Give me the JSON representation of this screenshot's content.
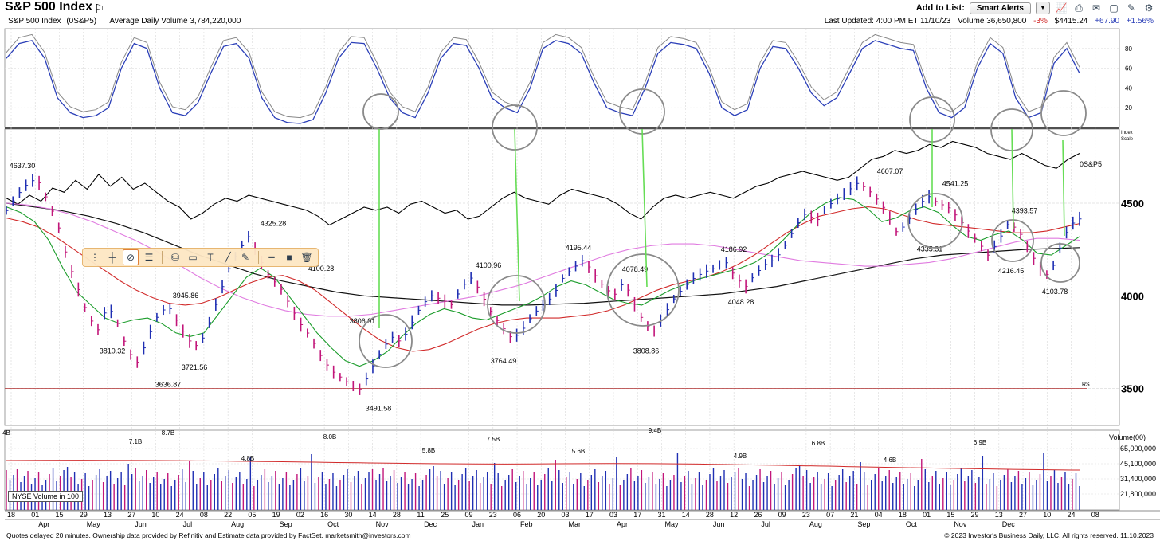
{
  "header": {
    "title": "S&P 500 Index",
    "add_to_list_label": "Add to List:",
    "smart_alerts_label": "Smart Alerts",
    "icons": [
      "flag-icon",
      "chart-icon",
      "print-icon",
      "alert-icon",
      "bookmark-icon",
      "tools-icon",
      "settings-icon"
    ]
  },
  "info_bar": {
    "name": "S&P 500 Index",
    "symbol": "(0S&P5)",
    "avg_volume": "Average Daily Volume 3,784,220,000",
    "last_updated": "Last Updated: 4:00 PM ET 11/10/23",
    "volume": "Volume 36,650,800",
    "volume_pct": "-3%",
    "price": "$4415.24",
    "change": "+67.90",
    "change_pct": "+1.56%"
  },
  "colors": {
    "accent_blue": "#2b3fb8",
    "up_bar": "#1f2fb3",
    "down_bar": "#c2167a",
    "ma_green": "#1a9c2a",
    "ma_red": "#d12a2a",
    "ma_pink": "#e07be0",
    "ma_black": "#111111",
    "highlight_green": "#66dd55",
    "circle_gray": "#8a8a8a",
    "rs_line": "#b03030"
  },
  "chart_data": {
    "type": "line",
    "title": "S&P 500 Index",
    "price_axis": {
      "ticks": [
        3500,
        4000,
        4500
      ],
      "ylim": [
        3300,
        4900
      ],
      "scale_label_1": "Index",
      "scale_label_2": "Scale"
    },
    "stochastic_axis": {
      "ticks": [
        20,
        40,
        60,
        80
      ],
      "ylim": [
        0,
        100
      ]
    },
    "volume_axis": {
      "unit_label": "Volume(00)",
      "ticks": [
        "65,000,000",
        "45,100,000",
        "31,400,000",
        "21,800,000"
      ]
    },
    "rs_label": "0S&P5",
    "rs_mark": "RS",
    "nyse_volume_label": "NYSE Volume in 100",
    "x_week_ticks": [
      "18",
      "01",
      "15",
      "29",
      "13",
      "27",
      "10",
      "24",
      "08",
      "22",
      "05",
      "19",
      "02",
      "16",
      "30",
      "14",
      "28",
      "11",
      "25",
      "09",
      "23",
      "06",
      "20",
      "03",
      "17",
      "03",
      "17",
      "31",
      "14",
      "28",
      "12",
      "26",
      "09",
      "23",
      "07",
      "21",
      "04",
      "18",
      "01",
      "15",
      "29",
      "13",
      "27",
      "10",
      "24",
      "08"
    ],
    "x_months": [
      "Apr",
      "May",
      "Jun",
      "Jul",
      "Aug",
      "Sep",
      "Oct",
      "Nov",
      "Dec",
      "Jan",
      "Feb",
      "Mar",
      "Apr",
      "May",
      "Jun",
      "Jul",
      "Aug",
      "Sep",
      "Oct",
      "Nov",
      "Dec"
    ],
    "price_annotations": [
      {
        "label": "4637.30",
        "value": 4637.3
      },
      {
        "label": "3810.32",
        "value": 3810.32
      },
      {
        "label": "3636.87",
        "value": 3636.87
      },
      {
        "label": "3945.86",
        "value": 3945.86
      },
      {
        "label": "3721.56",
        "value": 3721.56
      },
      {
        "label": "4325.28",
        "value": 4325.28
      },
      {
        "label": "4100.28",
        "value": 4100.28
      },
      {
        "label": "3806.91",
        "value": 3806.91
      },
      {
        "label": "3491.58",
        "value": 3491.58
      },
      {
        "label": "4100.96",
        "value": 4100.96
      },
      {
        "label": "3764.49",
        "value": 3764.49
      },
      {
        "label": "4195.44",
        "value": 4195.44
      },
      {
        "label": "4078.49",
        "value": 4078.49
      },
      {
        "label": "3808.86",
        "value": 3808.86
      },
      {
        "label": "4186.92",
        "value": 4186.92
      },
      {
        "label": "4048.28",
        "value": 4048.28
      },
      {
        "label": "4607.07",
        "value": 4607.07
      },
      {
        "label": "4541.25",
        "value": 4541.25
      },
      {
        "label": "4335.31",
        "value": 4335.31
      },
      {
        "label": "4393.57",
        "value": 4393.57
      },
      {
        "label": "4216.45",
        "value": 4216.45
      },
      {
        "label": "4103.78",
        "value": 4103.78
      }
    ],
    "volume_annotations": [
      "4B",
      "7.1B",
      "8.7B",
      "4.8B",
      "8.0B",
      "5.8B",
      "7.5B",
      "5.6B",
      "9.4B",
      "4.9B",
      "6.8B",
      "4.6B",
      "6.9B"
    ],
    "price_path": [
      4460,
      4540,
      4600,
      4637,
      4520,
      4400,
      4200,
      4050,
      3900,
      3810,
      3950,
      3850,
      3700,
      3637,
      3780,
      3900,
      3946,
      3850,
      3760,
      3722,
      3850,
      4000,
      4150,
      4250,
      4325,
      4200,
      4100,
      4050,
      3950,
      3850,
      3780,
      3680,
      3600,
      3560,
      3520,
      3492,
      3600,
      3700,
      3780,
      3750,
      3850,
      3950,
      4000,
      3980,
      3950,
      4050,
      4101,
      4000,
      3900,
      3830,
      3764,
      3820,
      3900,
      3950,
      4000,
      4100,
      4150,
      4195,
      4120,
      4050,
      4000,
      4078,
      3960,
      3850,
      3809,
      3900,
      3990,
      4050,
      4100,
      4130,
      4150,
      4187,
      4100,
      4048,
      4120,
      4170,
      4200,
      4280,
      4380,
      4450,
      4400,
      4480,
      4520,
      4560,
      4607,
      4580,
      4520,
      4450,
      4335,
      4400,
      4480,
      4541,
      4500,
      4480,
      4420,
      4350,
      4290,
      4216,
      4300,
      4394,
      4350,
      4250,
      4150,
      4104,
      4250,
      4380,
      4415
    ],
    "ma_green_path": [
      4480,
      4450,
      4400,
      4300,
      4150,
      4020,
      3950,
      3880,
      3850,
      3870,
      3880,
      3850,
      3800,
      3780,
      3800,
      3900,
      4000,
      4100,
      4150,
      4100,
      4000,
      3900,
      3800,
      3720,
      3650,
      3620,
      3650,
      3700,
      3780,
      3850,
      3900,
      3930,
      3910,
      3880,
      3870,
      3900,
      3930,
      3960,
      4000,
      4050,
      4080,
      4060,
      4020,
      3980,
      3960,
      3950,
      3990,
      4030,
      4060,
      4090,
      4110,
      4130,
      4150,
      4180,
      4230,
      4300,
      4380,
      4450,
      4500,
      4530,
      4520,
      4470,
      4400,
      4420,
      4460,
      4480,
      4450,
      4380,
      4320,
      4300,
      4330,
      4350,
      4300,
      4230,
      4220,
      4270,
      4320
    ],
    "ma_red_path": [
      4420,
      4400,
      4370,
      4320,
      4260,
      4200,
      4140,
      4080,
      4030,
      3990,
      3960,
      3950,
      3960,
      3990,
      4030,
      4070,
      4100,
      4110,
      4080,
      4030,
      3960,
      3890,
      3820,
      3760,
      3720,
      3700,
      3710,
      3740,
      3780,
      3820,
      3850,
      3870,
      3880,
      3880,
      3880,
      3890,
      3900,
      3920,
      3950,
      3990,
      4030,
      4060,
      4080,
      4100,
      4130,
      4170,
      4220,
      4280,
      4340,
      4390,
      4430,
      4450,
      4470,
      4480,
      4470,
      4440,
      4410,
      4390,
      4380,
      4370,
      4360,
      4350,
      4340,
      4340,
      4350,
      4370,
      4390
    ],
    "ma_pink_path": [
      4500,
      4490,
      4470,
      4440,
      4400,
      4350,
      4300,
      4240,
      4170,
      4100,
      4040,
      3990,
      3950,
      3920,
      3900,
      3890,
      3890,
      3900,
      3920,
      3940,
      3960,
      3980,
      4000,
      4030,
      4060,
      4100,
      4140,
      4180,
      4220,
      4250,
      4270,
      4280,
      4280,
      4270,
      4250,
      4230,
      4210,
      4190,
      4180,
      4170,
      4160,
      4160,
      4170,
      4180,
      4200,
      4230,
      4260,
      4290,
      4310,
      4310,
      4300
    ],
    "ma_black_path": [
      4500,
      4480,
      4460,
      4430,
      4390,
      4340,
      4280,
      4220,
      4170,
      4120,
      4080,
      4050,
      4020,
      4000,
      3990,
      3980,
      3970,
      3960,
      3950,
      3950,
      3955,
      3960,
      3970,
      3980,
      3990,
      4000,
      4010,
      4030,
      4050,
      4080,
      4110,
      4140,
      4170,
      4200,
      4220,
      4230,
      4240,
      4250,
      4255,
      4260
    ],
    "rs_path": [
      0.55,
      0.45,
      0.6,
      0.5,
      0.72,
      0.65,
      0.85,
      0.7,
      0.95,
      0.75,
      0.9,
      0.7,
      0.8,
      0.65,
      0.5,
      0.4,
      0.2,
      0.3,
      0.45,
      0.55,
      0.5,
      0.6,
      0.55,
      0.5,
      0.45,
      0.4,
      0.35,
      0.25,
      0.1,
      0.2,
      0.3,
      0.4,
      0.35,
      0.4,
      0.3,
      0.45,
      0.5,
      0.4,
      0.3,
      0.35,
      0.2,
      0.25,
      0.4,
      0.55,
      0.65,
      0.55,
      0.5,
      0.45,
      0.6,
      0.7,
      0.65,
      0.6,
      0.55,
      0.45,
      0.3,
      0.2,
      0.4,
      0.55,
      0.6,
      0.55,
      0.6,
      0.65,
      0.6,
      0.55,
      0.65,
      0.75,
      0.8,
      0.9,
      0.95,
      1.0,
      0.95,
      0.9,
      0.85,
      0.9,
      1.05,
      1.2,
      1.25,
      1.35,
      1.3,
      1.35,
      1.45,
      1.4,
      1.5,
      1.45,
      1.4,
      1.3,
      1.25,
      1.2,
      1.3,
      1.2,
      1.1,
      1.05,
      1.2,
      1.3
    ],
    "stoch_path": [
      70,
      85,
      88,
      70,
      30,
      15,
      10,
      12,
      20,
      60,
      85,
      80,
      40,
      15,
      12,
      25,
      55,
      82,
      85,
      70,
      30,
      10,
      5,
      4,
      8,
      35,
      70,
      86,
      85,
      60,
      30,
      15,
      10,
      35,
      70,
      85,
      83,
      60,
      30,
      20,
      15,
      40,
      80,
      88,
      85,
      75,
      45,
      20,
      15,
      12,
      40,
      75,
      86,
      84,
      80,
      55,
      20,
      12,
      18,
      60,
      82,
      80,
      60,
      35,
      22,
      30,
      55,
      80,
      88,
      84,
      80,
      78,
      40,
      15,
      10,
      20,
      60,
      85,
      75,
      30,
      10,
      15,
      65,
      80,
      55
    ]
  },
  "drawing_toolbar": {
    "tools": [
      "crosshair-icon",
      "hide-icon",
      "list-icon",
      "paint-icon",
      "rectangle-icon",
      "text-icon",
      "line-icon",
      "pencil-icon",
      "line-style-icon",
      "color-icon",
      "trash-icon"
    ]
  },
  "footer": {
    "left": "Quotes delayed 20 minutes. Ownership data provided by Refinitiv and Estimate data provided by FactSet. marketsmith@investors.com",
    "right": "© 2023 Investor's Business Daily, LLC. All rights reserved.      11.10.2023"
  }
}
